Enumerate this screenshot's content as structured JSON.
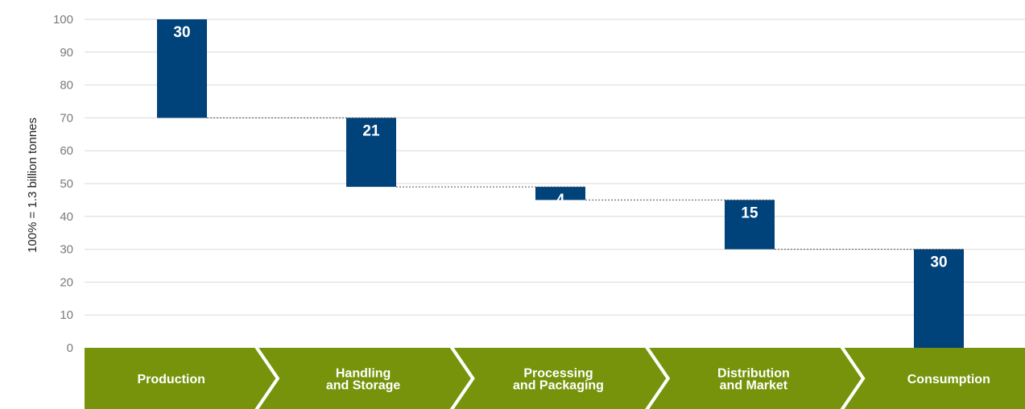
{
  "chart_data": {
    "type": "bar",
    "subtype": "waterfall",
    "ylabel": "100% = 1.3 billion tonnes",
    "ylim": [
      0,
      100
    ],
    "yticks": [
      0,
      10,
      20,
      30,
      40,
      50,
      60,
      70,
      80,
      90,
      100
    ],
    "grid": true,
    "categories": [
      [
        "Production"
      ],
      [
        "Handling",
        "and Storage"
      ],
      [
        "Processing",
        "and Packaging"
      ],
      [
        "Distribution",
        "and Market"
      ],
      [
        "Consumption"
      ]
    ],
    "bars": [
      {
        "label": "30",
        "start": 70,
        "end": 100
      },
      {
        "label": "21",
        "start": 49,
        "end": 70
      },
      {
        "label": "4",
        "start": 45,
        "end": 49
      },
      {
        "label": "15",
        "start": 30,
        "end": 45
      },
      {
        "label": "30",
        "start": 0,
        "end": 30
      }
    ]
  },
  "colors": {
    "bar": "#00427a",
    "stage": "#76930b",
    "grid": "#d9d9d9",
    "connector": "#555555"
  }
}
